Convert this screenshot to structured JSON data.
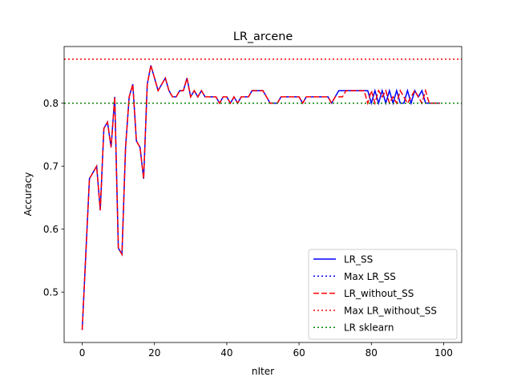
{
  "chart_data": {
    "type": "line",
    "title": "LR_arcene",
    "xlabel": "nIter",
    "ylabel": "Accuracy",
    "xlim": [
      -5,
      105
    ],
    "ylim": [
      0.42,
      0.89
    ],
    "xticks": [
      "0",
      "20",
      "40",
      "60",
      "80",
      "100"
    ],
    "yticks": [
      "0.5",
      "0.6",
      "0.7",
      "0.8"
    ],
    "grid": false,
    "legend_placement": "lower-right",
    "series": [
      {
        "name": "LR_SS",
        "style": "solid",
        "color": "#0000ff",
        "values": [
          0.44,
          0.56,
          0.68,
          0.69,
          0.7,
          0.63,
          0.76,
          0.77,
          0.73,
          0.81,
          0.57,
          0.56,
          0.73,
          0.81,
          0.83,
          0.74,
          0.73,
          0.68,
          0.83,
          0.86,
          0.84,
          0.82,
          0.83,
          0.84,
          0.82,
          0.81,
          0.81,
          0.82,
          0.82,
          0.84,
          0.81,
          0.82,
          0.81,
          0.82,
          0.81,
          0.81,
          0.81,
          0.81,
          0.8,
          0.81,
          0.81,
          0.8,
          0.81,
          0.8,
          0.81,
          0.81,
          0.81,
          0.82,
          0.82,
          0.82,
          0.82,
          0.81,
          0.8,
          0.8,
          0.8,
          0.81,
          0.81,
          0.81,
          0.81,
          0.81,
          0.81,
          0.8,
          0.81,
          0.81,
          0.81,
          0.81,
          0.81,
          0.81,
          0.81,
          0.8,
          0.81,
          0.82,
          0.82,
          0.82,
          0.82,
          0.82,
          0.82,
          0.82,
          0.82,
          0.82,
          0.8,
          0.82,
          0.8,
          0.82,
          0.8,
          0.82,
          0.8,
          0.82,
          0.8,
          0.8,
          0.82,
          0.8,
          0.82,
          0.81,
          0.82,
          0.8,
          0.8,
          0.8,
          0.8,
          0.8
        ]
      },
      {
        "name": "Max LR_SS",
        "style": "dotted",
        "color": "#0000ff",
        "constant": 0.87
      },
      {
        "name": "LR_without_SS",
        "style": "dashed",
        "color": "#ff0000",
        "values": [
          0.44,
          0.56,
          0.68,
          0.69,
          0.7,
          0.63,
          0.76,
          0.77,
          0.73,
          0.81,
          0.57,
          0.56,
          0.73,
          0.81,
          0.83,
          0.74,
          0.73,
          0.68,
          0.83,
          0.86,
          0.84,
          0.82,
          0.83,
          0.84,
          0.82,
          0.81,
          0.81,
          0.82,
          0.82,
          0.84,
          0.81,
          0.82,
          0.81,
          0.82,
          0.81,
          0.81,
          0.81,
          0.81,
          0.8,
          0.81,
          0.81,
          0.8,
          0.81,
          0.8,
          0.81,
          0.81,
          0.81,
          0.82,
          0.82,
          0.82,
          0.82,
          0.81,
          0.8,
          0.8,
          0.8,
          0.81,
          0.81,
          0.81,
          0.81,
          0.81,
          0.81,
          0.8,
          0.81,
          0.81,
          0.81,
          0.81,
          0.81,
          0.81,
          0.81,
          0.8,
          0.81,
          0.81,
          0.81,
          0.82,
          0.82,
          0.82,
          0.82,
          0.82,
          0.82,
          0.8,
          0.82,
          0.8,
          0.82,
          0.81,
          0.82,
          0.8,
          0.81,
          0.8,
          0.82,
          0.81,
          0.8,
          0.81,
          0.82,
          0.81,
          0.8,
          0.82,
          0.8,
          0.8,
          0.8,
          0.8
        ]
      },
      {
        "name": "Max LR_without_SS",
        "style": "dotted",
        "color": "#ff0000",
        "constant": 0.87
      },
      {
        "name": "LR sklearn",
        "style": "dotted",
        "color": "#008000",
        "constant": 0.8
      }
    ]
  }
}
